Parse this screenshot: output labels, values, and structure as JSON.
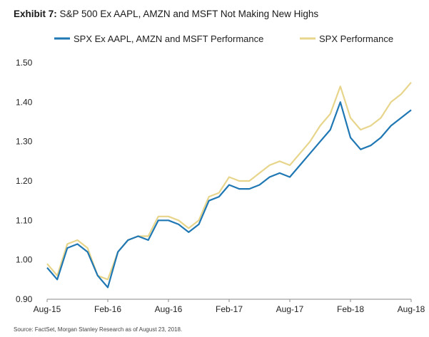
{
  "header": {
    "exhibit_label": "Exhibit 7:",
    "title": "S&P 500 Ex AAPL, AMZN and MSFT Not Making New Highs"
  },
  "footer": {
    "source": "Source: FactSet, Morgan Stanley Research as of August 23, 2018."
  },
  "chart_data": {
    "type": "line",
    "title": "S&P 500 Ex AAPL, AMZN and MSFT Not Making New Highs",
    "xlabel": "",
    "ylabel": "",
    "ylim": [
      0.9,
      1.5
    ],
    "yticks": [
      "0.90",
      "1.00",
      "1.10",
      "1.20",
      "1.30",
      "1.40",
      "1.50"
    ],
    "xticks": [
      "Aug-15",
      "Feb-16",
      "Aug-16",
      "Feb-17",
      "Aug-17",
      "Feb-18",
      "Aug-18"
    ],
    "grid": false,
    "legend_position": "top",
    "x": [
      "2015-08",
      "2015-09",
      "2015-10",
      "2015-11",
      "2015-12",
      "2016-01",
      "2016-02",
      "2016-03",
      "2016-04",
      "2016-05",
      "2016-06",
      "2016-07",
      "2016-08",
      "2016-09",
      "2016-10",
      "2016-11",
      "2016-12",
      "2017-01",
      "2017-02",
      "2017-03",
      "2017-04",
      "2017-05",
      "2017-06",
      "2017-07",
      "2017-08",
      "2017-09",
      "2017-10",
      "2017-11",
      "2017-12",
      "2018-01",
      "2018-02",
      "2018-03",
      "2018-04",
      "2018-05",
      "2018-06",
      "2018-07",
      "2018-08"
    ],
    "series": [
      {
        "name": "SPX Ex AAPL, AMZN and MSFT Performance",
        "color": "#1f77b4",
        "values": [
          0.98,
          0.95,
          1.03,
          1.04,
          1.02,
          0.96,
          0.93,
          1.02,
          1.05,
          1.06,
          1.05,
          1.1,
          1.1,
          1.09,
          1.07,
          1.09,
          1.15,
          1.16,
          1.19,
          1.18,
          1.18,
          1.19,
          1.21,
          1.22,
          1.21,
          1.24,
          1.27,
          1.3,
          1.33,
          1.4,
          1.31,
          1.28,
          1.29,
          1.31,
          1.34,
          1.36,
          1.38
        ]
      },
      {
        "name": "SPX Performance",
        "color": "#e8d58c",
        "values": [
          0.99,
          0.96,
          1.04,
          1.05,
          1.03,
          0.96,
          0.95,
          1.02,
          1.05,
          1.06,
          1.06,
          1.11,
          1.11,
          1.1,
          1.08,
          1.1,
          1.16,
          1.17,
          1.21,
          1.2,
          1.2,
          1.22,
          1.24,
          1.25,
          1.24,
          1.27,
          1.3,
          1.34,
          1.37,
          1.44,
          1.36,
          1.33,
          1.34,
          1.36,
          1.4,
          1.42,
          1.45
        ]
      }
    ]
  }
}
